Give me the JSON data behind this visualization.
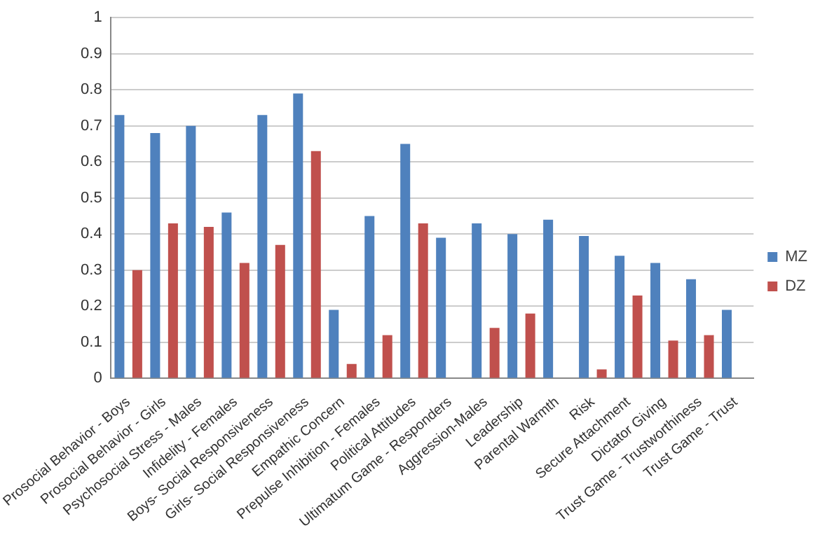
{
  "chart_data": {
    "type": "bar",
    "categories": [
      "Prosocial Behavior - Boys",
      "Prosocial Behavior - Girls",
      "Psychosocial Stress - Males",
      "Infidelity - Females",
      "Boys- Social Responsiveness",
      "Girls- Social Responsiveness",
      "Empathic Concern",
      "Prepulse Inhibition - Females",
      "Political Attitudes",
      "Ultimatum Game - Responders",
      "Aggression-Males",
      "Leadership",
      "Parental Warmth",
      "Risk",
      "Secure Attachment",
      "Dictator Giving",
      "Trust Game - Trustworthiness",
      "Trust Game - Trust"
    ],
    "series": [
      {
        "name": "MZ",
        "color": "#4f81bd",
        "values": [
          0.73,
          0.68,
          0.7,
          0.46,
          0.73,
          0.79,
          0.19,
          0.45,
          0.65,
          0.39,
          0.43,
          0.4,
          0.44,
          0.395,
          0.34,
          0.32,
          0.275,
          0.19
        ]
      },
      {
        "name": "DZ",
        "color": "#c0504d",
        "values": [
          0.3,
          0.43,
          0.42,
          0.32,
          0.37,
          0.63,
          0.04,
          0.12,
          0.43,
          0,
          0.14,
          0.18,
          0,
          0.025,
          0.23,
          0.105,
          0.12,
          0
        ]
      }
    ],
    "ylim": [
      0,
      1
    ],
    "yticks": [
      0,
      0.1,
      0.2,
      0.3,
      0.4,
      0.5,
      0.6,
      0.7,
      0.8,
      0.9,
      1
    ],
    "grid": "y",
    "legend": "right"
  }
}
